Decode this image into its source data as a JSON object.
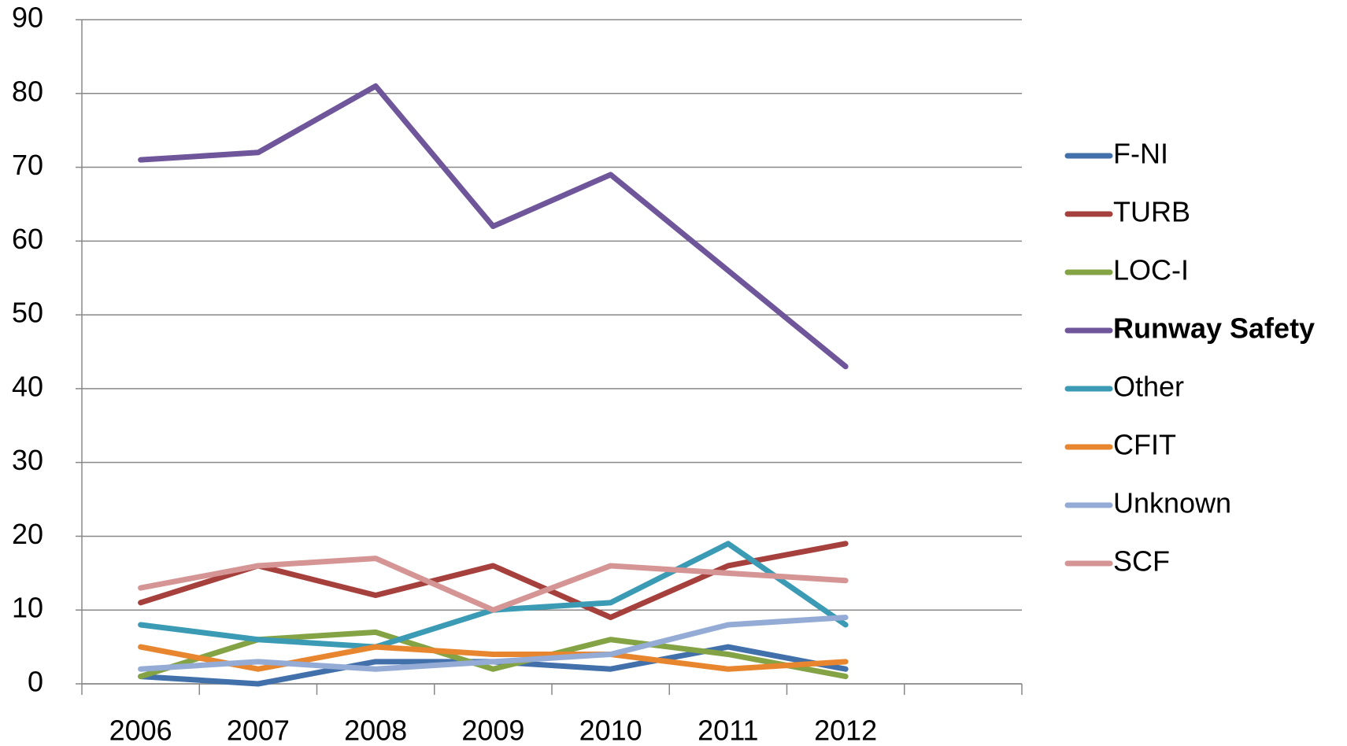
{
  "chart_data": {
    "type": "line",
    "categories": [
      "2006",
      "2007",
      "2008",
      "2009",
      "2010",
      "2011",
      "2012",
      null
    ],
    "series": [
      {
        "name": "F-NI",
        "color": "#4170aa",
        "values": [
          1,
          0,
          3,
          3,
          2,
          5,
          2,
          null
        ]
      },
      {
        "name": "TURB",
        "color": "#a6403d",
        "values": [
          11,
          16,
          12,
          16,
          9,
          16,
          19,
          null
        ]
      },
      {
        "name": "LOC-I",
        "color": "#84a345",
        "values": [
          1,
          6,
          7,
          2,
          6,
          4,
          1,
          null
        ]
      },
      {
        "name": "Runway Safety",
        "color": "#6f559a",
        "bold": true,
        "values": [
          71,
          72,
          81,
          62,
          69,
          56,
          43,
          null
        ]
      },
      {
        "name": "Other",
        "color": "#3b9bb4",
        "values": [
          8,
          6,
          5,
          10,
          11,
          19,
          8,
          null
        ]
      },
      {
        "name": "CFIT",
        "color": "#e8862f",
        "values": [
          5,
          2,
          5,
          4,
          4,
          2,
          3,
          null
        ]
      },
      {
        "name": "Unknown",
        "color": "#94abd5",
        "values": [
          2,
          3,
          2,
          3,
          4,
          8,
          9,
          null
        ]
      },
      {
        "name": "SCF",
        "color": "#d49594",
        "values": [
          13,
          16,
          17,
          10,
          16,
          15,
          14,
          null
        ]
      }
    ],
    "ylim": [
      0,
      90
    ],
    "yticks": [
      0,
      10,
      20,
      30,
      40,
      50,
      60,
      70,
      80,
      90
    ],
    "grid": true,
    "legend": "right"
  }
}
